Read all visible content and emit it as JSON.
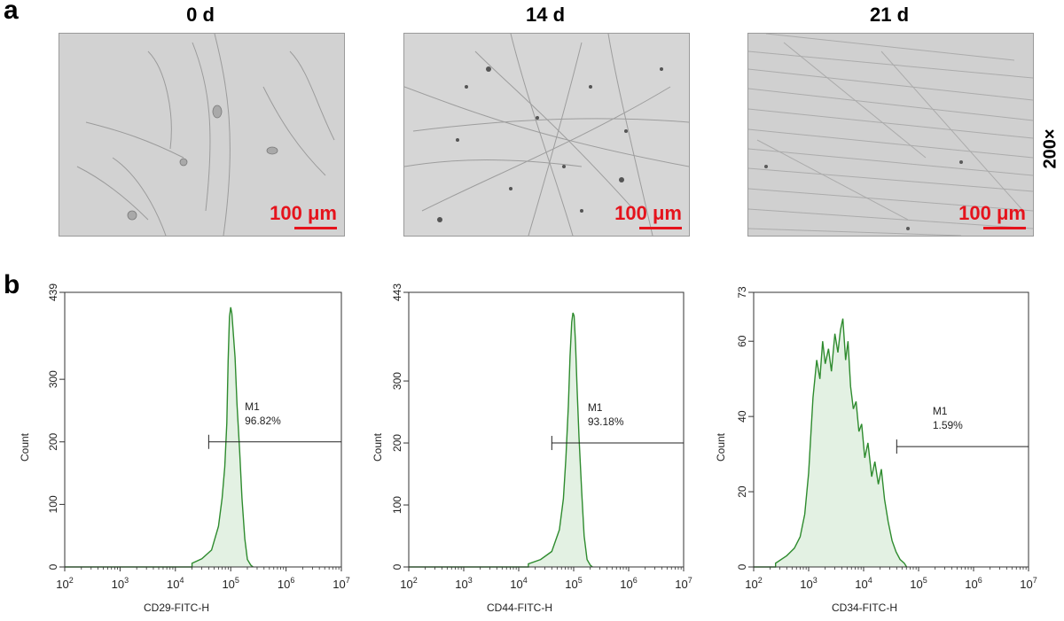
{
  "panel_a": {
    "label": "a",
    "magnification": "200×",
    "images": [
      {
        "title": "0 d",
        "scale_bar": "100 μm"
      },
      {
        "title": "14 d",
        "scale_bar": "100 μm"
      },
      {
        "title": "21 d",
        "scale_bar": "100 μm"
      }
    ]
  },
  "panel_b": {
    "label": "b"
  },
  "colors": {
    "scale": "#e5131c",
    "histogram_line": "#2e8b2e",
    "histogram_fill": "#e3f1e3"
  },
  "chart_data": [
    {
      "type": "area",
      "xlabel": "CD29-FITC-H",
      "ylabel": "Count",
      "x_scale": "log",
      "xlim": [
        100,
        10000000
      ],
      "ylim": [
        0,
        439
      ],
      "y_ticks": [
        0,
        100,
        200,
        300,
        439
      ],
      "x_ticks": [
        100,
        1000,
        10000,
        100000,
        1000000,
        10000000
      ],
      "x_tick_labels": [
        [
          "10",
          "2"
        ],
        [
          "10",
          "3"
        ],
        [
          "10",
          "4"
        ],
        [
          "10",
          "5"
        ],
        [
          "10",
          "6"
        ],
        [
          "10",
          "7"
        ]
      ],
      "gate": {
        "name": "M1",
        "percent": "96.82%",
        "from": 40000,
        "to": 10000000,
        "y": 200
      },
      "x": [
        20000,
        30000,
        45000,
        60000,
        70000,
        78000,
        85000,
        90000,
        95000,
        100000,
        105000,
        110000,
        120000,
        130000,
        145000,
        160000,
        180000,
        200000,
        230000
      ],
      "y": [
        6,
        13,
        27,
        65,
        110,
        160,
        230,
        330,
        400,
        415,
        405,
        380,
        335,
        260,
        185,
        110,
        45,
        12,
        3
      ]
    },
    {
      "type": "area",
      "xlabel": "CD44-FITC-H",
      "ylabel": "Count",
      "x_scale": "log",
      "xlim": [
        100,
        10000000
      ],
      "ylim": [
        0,
        443
      ],
      "y_ticks": [
        0,
        100,
        200,
        300,
        443
      ],
      "x_ticks": [
        100,
        1000,
        10000,
        100000,
        1000000,
        10000000
      ],
      "x_tick_labels": [
        [
          "10",
          "2"
        ],
        [
          "10",
          "3"
        ],
        [
          "10",
          "4"
        ],
        [
          "10",
          "5"
        ],
        [
          "10",
          "6"
        ],
        [
          "10",
          "7"
        ]
      ],
      "gate": {
        "name": "M1",
        "percent": "93.18%",
        "from": 40000,
        "to": 10000000,
        "y": 200
      },
      "x": [
        15000,
        25000,
        40000,
        55000,
        65000,
        72000,
        80000,
        86000,
        92000,
        97000,
        102000,
        108000,
        115000,
        125000,
        140000,
        155000,
        175000,
        200000
      ],
      "y": [
        5,
        12,
        25,
        60,
        110,
        175,
        260,
        340,
        395,
        410,
        405,
        360,
        290,
        210,
        120,
        50,
        12,
        3
      ]
    },
    {
      "type": "area",
      "xlabel": "CD34-FITC-H",
      "ylabel": "Count",
      "x_scale": "log",
      "xlim": [
        100,
        10000000
      ],
      "ylim": [
        0,
        73
      ],
      "y_ticks": [
        0,
        20,
        40,
        60,
        73
      ],
      "x_ticks": [
        100,
        1000,
        10000,
        100000,
        1000000,
        10000000
      ],
      "x_tick_labels": [
        [
          "10",
          "2"
        ],
        [
          "10",
          "3"
        ],
        [
          "10",
          "4"
        ],
        [
          "10",
          "5"
        ],
        [
          "10",
          "6"
        ],
        [
          "10",
          "7"
        ]
      ],
      "gate": {
        "name": "M1",
        "percent": "1.59%",
        "from": 40000,
        "to": 10000000,
        "y": 32
      },
      "x": [
        250,
        400,
        550,
        700,
        850,
        1000,
        1200,
        1400,
        1600,
        1800,
        2000,
        2300,
        2600,
        3000,
        3400,
        3800,
        4200,
        4700,
        5200,
        5800,
        6500,
        7300,
        8200,
        9200,
        10500,
        12000,
        14000,
        16000,
        18500,
        21000,
        24000,
        28000,
        33000,
        39000,
        46000,
        55000
      ],
      "y": [
        1,
        3,
        5,
        8,
        14,
        25,
        45,
        55,
        50,
        60,
        54,
        58,
        52,
        62,
        57,
        63,
        66,
        55,
        60,
        48,
        42,
        44,
        36,
        38,
        29,
        33,
        24,
        28,
        22,
        26,
        18,
        12,
        7,
        4,
        2,
        1
      ]
    }
  ]
}
